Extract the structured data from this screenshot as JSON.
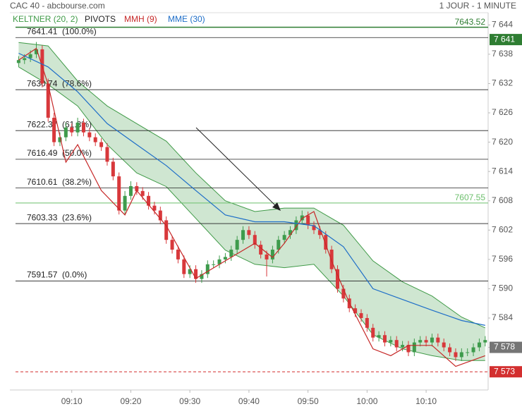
{
  "chart_data": {
    "type": "candlestick",
    "title": "CAC 40 - abcbourse.com",
    "subtitle": "1 JOUR - 1 MINUTE",
    "up_color": "#3e9b4c",
    "down_color": "#d8383b",
    "xlim": [
      -1,
      79.5
    ],
    "xticks": [
      {
        "value": 9,
        "label": "09:10"
      },
      {
        "value": 19,
        "label": "09:20"
      },
      {
        "value": 29,
        "label": "09:30"
      },
      {
        "value": 39,
        "label": "09:40"
      },
      {
        "value": 49,
        "label": "09:50"
      },
      {
        "value": 59,
        "label": "10:00"
      },
      {
        "value": 69,
        "label": "10:10"
      }
    ],
    "ylim": [
      7570,
      7646.5
    ],
    "yticks": [
      {
        "value": 7644,
        "label": "7 644"
      },
      {
        "value": 7638,
        "label": "7 638"
      },
      {
        "value": 7632,
        "label": "7 632"
      },
      {
        "value": 7626,
        "label": "7 626"
      },
      {
        "value": 7620,
        "label": "7 620"
      },
      {
        "value": 7614,
        "label": "7 614"
      },
      {
        "value": 7608,
        "label": "7 608"
      },
      {
        "value": 7602,
        "label": "7 602"
      },
      {
        "value": 7596,
        "label": "7 596"
      },
      {
        "value": 7590,
        "label": "7 590"
      },
      {
        "value": 7584,
        "label": "7 584"
      },
      {
        "value": 7578,
        "label": "7 578"
      }
    ],
    "open": [
      7636.2,
      7636.8,
      7637.2,
      7638,
      7639,
      7632,
      7625,
      7620,
      7621,
      7623,
      7622,
      7624,
      7622,
      7621,
      7620,
      7619,
      7616,
      7613,
      7606,
      7609,
      7611,
      7610,
      7609,
      7607,
      7606,
      7604,
      7600,
      7598,
      7596,
      7593,
      7594,
      7592,
      7593,
      7595,
      7595,
      7596,
      7596.5,
      7598,
      7600,
      7602,
      7601,
      7599,
      7597,
      7596,
      7598,
      7600,
      7601,
      7602,
      7604,
      7605,
      7603,
      7602,
      7601,
      7598,
      7594,
      7590,
      7588,
      7586,
      7585,
      7584,
      7582,
      7580,
      7580.5,
      7579,
      7579.5,
      7578,
      7578.5,
      7577,
      7579,
      7579.5,
      7579,
      7580,
      7579,
      7578,
      7577,
      7576,
      7577,
      7577,
      7578,
      7579
    ],
    "high": [
      7637.6,
      7638,
      7638.8,
      7640.5,
      7639.8,
      7633,
      7626,
      7622,
      7624,
      7623.8,
      7625,
      7624.8,
      7622.8,
      7621.8,
      7620.8,
      7619.8,
      7616.8,
      7613.8,
      7610,
      7612,
      7611.8,
      7610.8,
      7609.8,
      7607.8,
      7606.8,
      7604.8,
      7600.8,
      7598.8,
      7596.8,
      7594.8,
      7594.8,
      7593.8,
      7595.8,
      7595.8,
      7596.8,
      7597.3,
      7598.8,
      7600.8,
      7602.8,
      7602.8,
      7601.8,
      7599.8,
      7597.8,
      7598.8,
      7600.8,
      7601.8,
      7602.8,
      7604.8,
      7606,
      7605.8,
      7603.8,
      7602.8,
      7601.8,
      7598.8,
      7594.8,
      7590.8,
      7588.8,
      7586.8,
      7585.8,
      7584.8,
      7582.8,
      7581.3,
      7581.3,
      7580.3,
      7580.3,
      7579.3,
      7579.3,
      7579.8,
      7580.3,
      7580.3,
      7580.8,
      7580.8,
      7579.8,
      7578.8,
      7577.8,
      7577.8,
      7577.8,
      7578.8,
      7579.8,
      7580.3
    ],
    "low": [
      7635.4,
      7636,
      7636.4,
      7637.2,
      7631.2,
      7624.2,
      7619.2,
      7619.2,
      7620.2,
      7621.2,
      7621.2,
      7621.2,
      7620.2,
      7619.2,
      7618.2,
      7615.2,
      7612.2,
      7605.2,
      7605.2,
      7608.2,
      7609.2,
      7608.2,
      7606.2,
      7605.2,
      7603.2,
      7599.2,
      7597.2,
      7595.2,
      7592.2,
      7592.2,
      7591.2,
      7591.2,
      7592.2,
      7594.2,
      7594.2,
      7595.2,
      7595.7,
      7597.2,
      7599.2,
      7600.2,
      7598.2,
      7596.2,
      7592.5,
      7595.2,
      7597.2,
      7599.2,
      7600.2,
      7601.2,
      7603.2,
      7602.2,
      7601.2,
      7600.2,
      7597.2,
      7593.2,
      7589.2,
      7587.2,
      7585.2,
      7584.2,
      7583.2,
      7581.2,
      7579.2,
      7579.2,
      7578.2,
      7578.2,
      7577.2,
      7577.2,
      7576.2,
      7576.2,
      7578.2,
      7578.2,
      7578.2,
      7578.2,
      7577.2,
      7576.2,
      7575.2,
      7575.2,
      7576.2,
      7576.2,
      7577.2,
      7578.2
    ],
    "close": [
      7636.8,
      7637.2,
      7638,
      7639,
      7632,
      7625,
      7620,
      7621,
      7623,
      7622,
      7624,
      7622,
      7621,
      7620,
      7619,
      7616,
      7613,
      7606,
      7609,
      7611,
      7610,
      7609,
      7607,
      7606,
      7604,
      7600,
      7598,
      7596,
      7593,
      7594,
      7592,
      7593,
      7595,
      7595,
      7596,
      7596.5,
      7598,
      7600,
      7602,
      7601,
      7599,
      7597,
      7596,
      7598,
      7600,
      7601,
      7602,
      7604,
      7605,
      7603,
      7602,
      7601,
      7598,
      7594,
      7590,
      7588,
      7586,
      7585,
      7584,
      7582,
      7580,
      7580.5,
      7579,
      7579.5,
      7578,
      7578.5,
      7577,
      7579,
      7579.5,
      7579,
      7580,
      7579,
      7578,
      7577,
      7576,
      7577,
      7577,
      7578,
      7579,
      7579.5
    ],
    "series": [
      {
        "name": "KELTNER (20, 2)",
        "color": "#3f9a47",
        "x": [
          0,
          5,
          10,
          15,
          20,
          25,
          30,
          35,
          40,
          45,
          50,
          55,
          60,
          65,
          70,
          75,
          79
        ],
        "upper": [
          7640.4,
          7639.7,
          7632.5,
          7627.4,
          7623.8,
          7620.2,
          7613.7,
          7608,
          7605.8,
          7606.5,
          7606.5,
          7603,
          7595.7,
          7591.4,
          7588.5,
          7584.2,
          7582
        ],
        "lower": [
          7635.4,
          7631.8,
          7627.4,
          7619.5,
          7613.7,
          7610.9,
          7604.4,
          7597.9,
          7595,
          7594.3,
          7595,
          7588.5,
          7580.6,
          7577.7,
          7576.3,
          7575.3,
          7575.3
        ]
      },
      {
        "name": "PIVOTS",
        "color": "#222222",
        "levels": [
          {
            "value": 7641.41,
            "percent": "(100.0%)"
          },
          {
            "value": 7630.74,
            "percent": "(78.6%)"
          },
          {
            "value": 7622.37,
            "percent": "(61.8%)"
          },
          {
            "value": 7616.49,
            "percent": "(50.0%)"
          },
          {
            "value": 7610.61,
            "percent": "(38.2%)"
          },
          {
            "value": 7603.33,
            "percent": "(23.6%)"
          },
          {
            "value": 7591.57,
            "percent": "(0.0%)"
          }
        ]
      },
      {
        "name": "MMH (9)",
        "color": "#c62828",
        "x": [
          0,
          3,
          5,
          8,
          10,
          14,
          18,
          20,
          25,
          30,
          35,
          40,
          43,
          45,
          48,
          50,
          53,
          56,
          60,
          63,
          66,
          70,
          74,
          79
        ],
        "values": [
          7636.8,
          7639.2,
          7631.8,
          7615.9,
          7619.5,
          7610.1,
          7605.1,
          7610.1,
          7602.9,
          7592.1,
          7595.7,
          7599.3,
          7596.4,
          7599.3,
          7604.4,
          7605.8,
          7595.7,
          7587.1,
          7577.7,
          7576.3,
          7578.4,
          7578.4,
          7574.1,
          7576.3
        ]
      },
      {
        "name": "MME (30)",
        "color": "#1e6ec8",
        "x": [
          0,
          5,
          10,
          15,
          20,
          25,
          30,
          35,
          40,
          45,
          50,
          55,
          60,
          65,
          70,
          75,
          79
        ],
        "values": [
          7638.2,
          7635.4,
          7630.3,
          7623.8,
          7619.5,
          7615.2,
          7610.1,
          7605.1,
          7603.7,
          7603.7,
          7602.9,
          7598.6,
          7590,
          7587.8,
          7585.6,
          7583.5,
          7582.5
        ]
      }
    ],
    "hlines": [
      {
        "value": 7643.52,
        "color": "#2e7d32"
      },
      {
        "value": 7607.55,
        "color": "#6cbf6c"
      }
    ],
    "price_badges": [
      {
        "value": 7641,
        "label": "7 641",
        "color": "#2e7d32"
      },
      {
        "value": 7578,
        "label": "7 578",
        "color": "#757575"
      },
      {
        "value": 7573,
        "label": "7 573",
        "color": "#d32f2f"
      }
    ]
  }
}
